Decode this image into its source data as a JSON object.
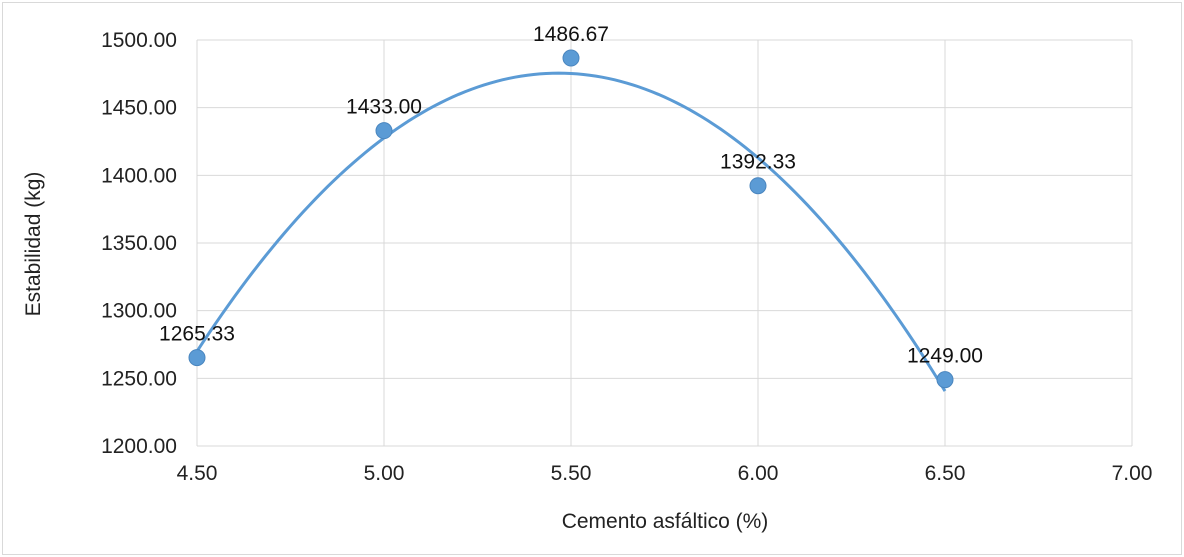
{
  "chart_data": {
    "type": "scatter",
    "title": "",
    "xlabel": "Cemento asfáltico (%)",
    "ylabel": "Estabilidad (kg)",
    "xlim": [
      4.5,
      7.0
    ],
    "ylim": [
      1200,
      1500
    ],
    "x_ticks": [
      "4.50",
      "5.00",
      "5.50",
      "6.00",
      "6.50",
      "7.00"
    ],
    "y_ticks": [
      "1200.00",
      "1250.00",
      "1300.00",
      "1350.00",
      "1400.00",
      "1450.00",
      "1500.00"
    ],
    "grid": true,
    "legend": "none",
    "trendline": "polynomial (order 2)",
    "series": [
      {
        "color": "#5b9bd5",
        "x": [
          4.5,
          5.0,
          5.5,
          6.0,
          6.5
        ],
        "y": [
          1265.33,
          1433.0,
          1486.67,
          1392.33,
          1249.0
        ],
        "labels": [
          "1265.33",
          "1433.00",
          "1486.67",
          "1392.33",
          "1249.00"
        ]
      }
    ]
  }
}
